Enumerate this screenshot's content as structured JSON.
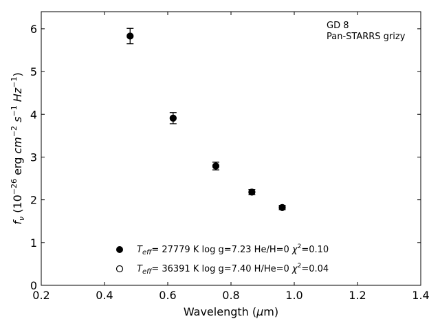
{
  "chart_data": {
    "type": "scatter",
    "annotations": [
      "GD 8",
      "Pan-STARRS grizy"
    ],
    "xlabel": "Wavelength (μm)",
    "ylabel": "f_ν (10^-26 erg cm^-2 s^-1 Hz^-1)",
    "xlim": [
      0.2,
      1.4
    ],
    "ylim": [
      0,
      6.4
    ],
    "xticks": [
      0.2,
      0.4,
      0.6,
      0.8,
      1.0,
      1.2,
      1.4
    ],
    "xtick_labels": [
      "0.2",
      "0.4",
      "0.6",
      "0.8",
      "1.0",
      "1.2",
      "1.4"
    ],
    "yticks": [
      0,
      1,
      2,
      3,
      4,
      5,
      6
    ],
    "ytick_labels": [
      "0",
      "1",
      "2",
      "3",
      "4",
      "5",
      "6"
    ],
    "grid": false,
    "legend_placement": "bottom-center",
    "series": [
      {
        "name": "T_eff= 27779 K  log g=7.23  He/H=0  χ²=0.10",
        "marker": "filled-circle",
        "color": "#000000",
        "points": [
          {
            "x": 0.481,
            "y": 5.83,
            "err": 0.18
          },
          {
            "x": 0.617,
            "y": 3.91,
            "err": 0.13
          },
          {
            "x": 0.752,
            "y": 2.79,
            "err": 0.09
          },
          {
            "x": 0.866,
            "y": 2.18,
            "err": 0.06
          },
          {
            "x": 0.962,
            "y": 1.82,
            "err": 0.05
          }
        ]
      },
      {
        "name": "T_eff= 36391 K  log g=7.40  H/He=0  χ²=0.04",
        "marker": "open-circle",
        "color": "#000000",
        "points": [
          {
            "x": 0.481,
            "y": 5.83
          },
          {
            "x": 0.617,
            "y": 3.91
          },
          {
            "x": 0.752,
            "y": 2.79
          },
          {
            "x": 0.866,
            "y": 2.18
          },
          {
            "x": 0.962,
            "y": 1.82
          }
        ]
      }
    ]
  }
}
